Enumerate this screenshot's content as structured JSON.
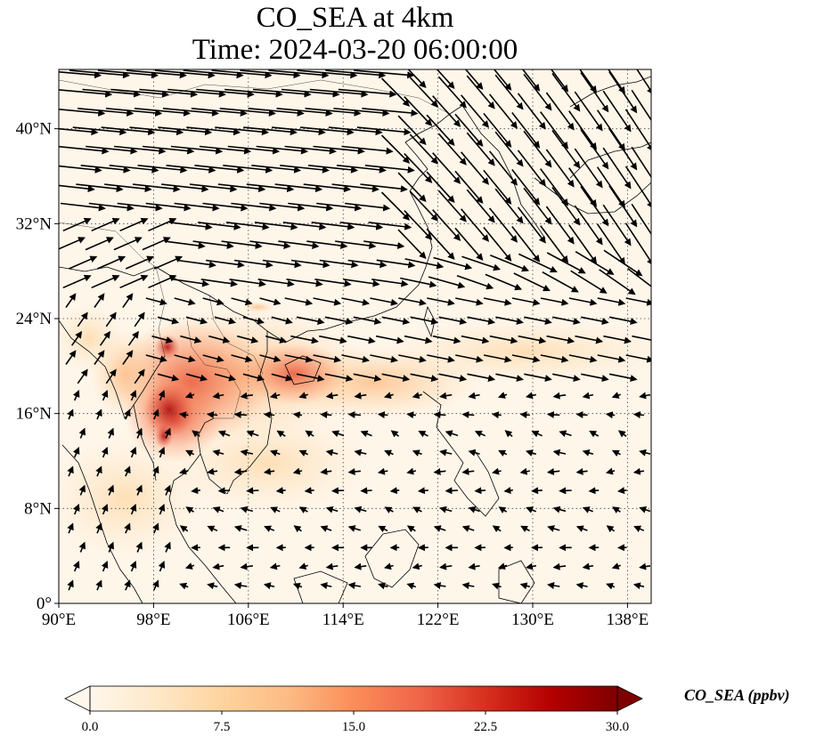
{
  "title_line1": "CO_SEA at 4km",
  "title_line2": "Time: 2024-03-20 06:00:00",
  "map": {
    "lon_range": [
      90,
      140
    ],
    "lat_range": [
      0,
      45
    ],
    "lon_ticks": [
      {
        "value": 90,
        "label": "90°E"
      },
      {
        "value": 98,
        "label": "98°E"
      },
      {
        "value": 106,
        "label": "106°E"
      },
      {
        "value": 114,
        "label": "114°E"
      },
      {
        "value": 122,
        "label": "122°E"
      },
      {
        "value": 130,
        "label": "130°E"
      },
      {
        "value": 138,
        "label": "138°E"
      }
    ],
    "lat_ticks": [
      {
        "value": 0,
        "label": "0°"
      },
      {
        "value": 8,
        "label": "8°N"
      },
      {
        "value": 16,
        "label": "16°N"
      },
      {
        "value": 24,
        "label": "24°N"
      },
      {
        "value": 32,
        "label": "32°N"
      },
      {
        "value": 40,
        "label": "40°N"
      }
    ],
    "gridlines": true,
    "wind_vectors": true
  },
  "colorbar": {
    "label": "CO_SEA (ppbv)",
    "min": 0.0,
    "max": 30.0,
    "ticks": [
      "0.0",
      "7.5",
      "15.0",
      "22.5",
      "30.0"
    ],
    "colormap": "OrRd",
    "extend": "both",
    "colors": [
      "#fff7ec",
      "#fee8c8",
      "#fdd49e",
      "#fdbb84",
      "#fc8d59",
      "#ef6548",
      "#d7301f",
      "#b30000",
      "#7f0000"
    ]
  }
}
